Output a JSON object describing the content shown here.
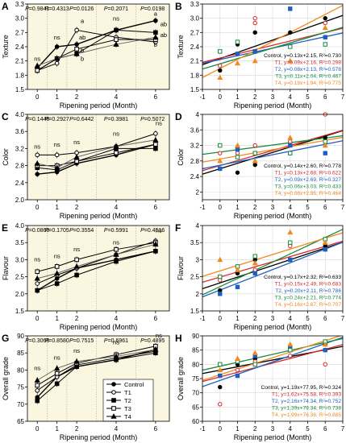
{
  "colors": {
    "control": "#000000",
    "T1": "#d62728",
    "T2": "#1f5fbf",
    "T3": "#178a3a",
    "T4": "#f08a1c",
    "panel_bg": "#fbf6df"
  },
  "left_xlabel": "Ripening period (Month)",
  "right_xlabel": "Ripening period (Month)",
  "legend_entries": [
    "Control",
    "T1",
    "T2",
    "T3",
    "T4"
  ],
  "chart_data": [
    {
      "id": "A",
      "type": "line",
      "ylabel": "Texture",
      "ylim": [
        1.5,
        3.3
      ],
      "yticks": [
        "1.5",
        "1.8",
        "2.1",
        "2.4",
        "2.7",
        "3.0",
        "3.3"
      ],
      "x": [
        0,
        1,
        2,
        4,
        6
      ],
      "xticks": [
        "0",
        "1",
        "2",
        "4",
        "6"
      ],
      "pvalues": [
        "P=0.9841",
        "P=0.4313",
        "P=0.0126",
        "P=0.2071",
        "P=0.0198"
      ],
      "sig": [
        {
          "t": "ns",
          "x": 0,
          "y": 2.1
        },
        {
          "t": "ns",
          "x": 1,
          "y": 2.55
        },
        {
          "t": "a",
          "x": 2,
          "y": 2.9
        },
        {
          "t": "ab",
          "x": 2,
          "y": 2.55
        },
        {
          "t": "b",
          "x": 2,
          "y": 2.28
        },
        {
          "t": "b",
          "x": 2,
          "y": 2.1
        },
        {
          "t": "ns",
          "x": 4,
          "y": 2.95
        },
        {
          "t": "a",
          "x": 6,
          "y": 3.05
        },
        {
          "t": "ab",
          "x": 6,
          "y": 2.83
        },
        {
          "t": "ab",
          "x": 6,
          "y": 2.6
        },
        {
          "t": "b",
          "x": 6,
          "y": 2.4
        }
      ],
      "series": [
        {
          "name": "Control",
          "values": [
            1.95,
            2.4,
            2.45,
            2.75,
            2.95
          ]
        },
        {
          "name": "T1",
          "values": [
            1.9,
            2.05,
            2.75,
            2.6,
            2.5
          ]
        },
        {
          "name": "T2",
          "values": [
            1.9,
            2.15,
            2.25,
            2.75,
            2.7
          ]
        },
        {
          "name": "T3",
          "values": [
            1.9,
            2.15,
            2.35,
            2.55,
            2.55
          ]
        },
        {
          "name": "T4",
          "values": [
            2.0,
            2.15,
            2.25,
            2.45,
            2.6
          ]
        }
      ]
    },
    {
      "id": "B",
      "type": "scatter",
      "ylabel": "Texture",
      "ylim": [
        1.5,
        3.3
      ],
      "yticks": [
        "1.5",
        "1.8",
        "2.1",
        "2.4",
        "2.7",
        "3.0",
        "3.3"
      ],
      "xlim": [
        -1,
        7
      ],
      "xticks": [
        "-1",
        "0",
        "1",
        "2",
        "3",
        "4",
        "5",
        "6",
        "7"
      ],
      "fits": [
        "Control, y=0.13x+2.15, R²=0.730",
        "T1, y=0.09x+2.16, R²=0.298",
        "T2, y=0.08x+2.13, R²=0.578",
        "T3, y=0.11x+2.04, R²=0.467",
        "T4, y=0.19x+1.94, R²=0.775"
      ],
      "lines": [
        [
          0.13,
          2.15
        ],
        [
          0.09,
          2.16
        ],
        [
          0.08,
          2.13
        ],
        [
          0.11,
          2.04
        ],
        [
          0.19,
          1.94
        ]
      ],
      "points": [
        [
          0,
          1.9,
          0
        ],
        [
          0,
          2.0,
          1
        ],
        [
          0,
          2.3,
          3
        ],
        [
          0,
          1.75,
          4
        ],
        [
          1,
          2.45,
          0
        ],
        [
          1,
          2.25,
          2
        ],
        [
          1,
          2.5,
          3
        ],
        [
          1,
          2.05,
          4
        ],
        [
          2,
          2.9,
          1
        ],
        [
          2,
          3.0,
          1
        ],
        [
          2,
          2.3,
          2
        ],
        [
          2,
          2.7,
          0
        ],
        [
          2,
          2.1,
          4
        ],
        [
          4,
          2.7,
          0
        ],
        [
          4,
          3.2,
          2
        ],
        [
          4,
          2.4,
          3
        ],
        [
          4,
          2.1,
          4
        ],
        [
          6,
          3.0,
          0
        ],
        [
          6,
          2.9,
          1
        ],
        [
          6,
          2.6,
          2
        ],
        [
          6,
          2.45,
          3
        ],
        [
          6,
          2.8,
          4
        ]
      ]
    },
    {
      "id": "C",
      "type": "line",
      "ylabel": "Color",
      "ylim": [
        2.0,
        4.0
      ],
      "yticks": [
        "2.0",
        "2.4",
        "2.8",
        "3.2",
        "3.6",
        "4.0"
      ],
      "x": [
        0,
        1,
        2,
        4,
        6
      ],
      "xticks": [
        "0",
        "1",
        "2",
        "4",
        "6"
      ],
      "pvalues": [
        "P=0.1446",
        "P=0.2927",
        "P=0.6442",
        "P=0.3981",
        "P=0.5072"
      ],
      "sig": [
        {
          "t": "ns",
          "x": 0,
          "y": 3.2
        },
        {
          "t": "ns",
          "x": 1,
          "y": 3.25
        },
        {
          "t": "ns",
          "x": 2,
          "y": 3.3
        },
        {
          "t": "ns",
          "x": 4,
          "y": 3.5
        },
        {
          "t": "ns",
          "x": 6,
          "y": 3.75
        }
      ],
      "series": [
        {
          "name": "Control",
          "values": [
            2.6,
            2.65,
            2.85,
            3.05,
            3.3
          ]
        },
        {
          "name": "T1",
          "values": [
            3.05,
            3.05,
            3.1,
            3.25,
            3.55
          ]
        },
        {
          "name": "T2",
          "values": [
            2.75,
            2.7,
            2.9,
            3.2,
            3.2
          ]
        },
        {
          "name": "T3",
          "values": [
            2.8,
            2.8,
            2.9,
            3.1,
            3.3
          ]
        },
        {
          "name": "T4",
          "values": [
            2.85,
            2.75,
            3.0,
            3.25,
            3.4
          ]
        }
      ]
    },
    {
      "id": "D",
      "type": "scatter",
      "ylabel": "Color",
      "ylim": [
        1.8,
        4.0
      ],
      "yticks": [
        "2",
        "2.4",
        "2.8",
        "3.2",
        "3.6",
        "4"
      ],
      "xlim": [
        -1,
        7
      ],
      "xticks": [
        "-1",
        "0",
        "1",
        "2",
        "3",
        "4",
        "5",
        "6",
        "7"
      ],
      "fits": [
        "Control, y=0.14x+2.60, R²=0.778",
        "T1, y=0.13x+2.68, R²=0.622",
        "T2, y=0.09x+2.69, R²=0.327",
        "T3, y=0.06x+3.03, R²=0.433",
        "T4, y=0.08x+2.85, R²=0.464"
      ],
      "lines": [
        [
          0.14,
          2.6
        ],
        [
          0.13,
          2.68
        ],
        [
          0.09,
          2.69
        ],
        [
          0.06,
          3.03
        ],
        [
          0.08,
          2.85
        ]
      ],
      "points": [
        [
          0,
          2.6,
          0
        ],
        [
          0,
          3.0,
          1
        ],
        [
          0,
          2.6,
          2
        ],
        [
          0,
          3.2,
          3
        ],
        [
          0,
          2.8,
          4
        ],
        [
          1,
          2.5,
          0
        ],
        [
          1,
          3.0,
          1
        ],
        [
          1,
          3.1,
          2
        ],
        [
          1,
          2.9,
          3
        ],
        [
          1,
          3.2,
          4
        ],
        [
          2,
          2.7,
          0
        ],
        [
          2,
          3.2,
          1
        ],
        [
          2,
          3.0,
          2
        ],
        [
          2,
          3.0,
          3
        ],
        [
          2,
          2.8,
          4
        ],
        [
          4,
          3.0,
          0
        ],
        [
          4,
          3.3,
          1
        ],
        [
          4,
          3.2,
          2
        ],
        [
          4,
          3.0,
          3
        ],
        [
          4,
          3.4,
          4
        ],
        [
          6,
          3.4,
          0
        ],
        [
          6,
          4.0,
          1
        ],
        [
          6,
          3.0,
          2
        ],
        [
          6,
          3.3,
          3
        ],
        [
          6,
          3.2,
          4
        ]
      ]
    },
    {
      "id": "E",
      "type": "line",
      "ylabel": "Flavour",
      "ylim": [
        1.5,
        4.0
      ],
      "yticks": [
        "1.5",
        "2.0",
        "2.5",
        "3.0",
        "3.5",
        "4.0"
      ],
      "x": [
        0,
        1,
        2,
        4,
        6
      ],
      "xticks": [
        "0",
        "1",
        "2",
        "4",
        "6"
      ],
      "pvalues": [
        "P=0.0860",
        "P=0.1705",
        "P=0.3554",
        "P=0.5991",
        "P=0.4516"
      ],
      "sig": [
        {
          "t": "ns",
          "x": 0,
          "y": 2.95
        },
        {
          "t": "ns",
          "x": 1,
          "y": 3.05
        },
        {
          "t": "ns",
          "x": 2,
          "y": 3.25
        },
        {
          "t": "ns",
          "x": 4,
          "y": 3.45
        },
        {
          "t": "ns",
          "x": 6,
          "y": 3.8
        }
      ],
      "series": [
        {
          "name": "Control",
          "values": [
            2.1,
            2.45,
            2.75,
            3.0,
            3.25
          ]
        },
        {
          "name": "T1",
          "values": [
            2.3,
            2.55,
            2.75,
            3.15,
            3.55
          ]
        },
        {
          "name": "T2",
          "values": [
            2.1,
            2.3,
            2.55,
            2.95,
            3.25
          ]
        },
        {
          "name": "T3",
          "values": [
            2.65,
            2.8,
            3.0,
            3.3,
            3.5
          ]
        },
        {
          "name": "T4",
          "values": [
            2.45,
            2.6,
            2.8,
            3.15,
            3.45
          ]
        }
      ]
    },
    {
      "id": "F",
      "type": "scatter",
      "ylabel": "Flavour",
      "ylim": [
        1.5,
        4.0
      ],
      "yticks": [
        "1.5",
        "2",
        "2.5",
        "3",
        "3.5",
        "4"
      ],
      "xlim": [
        -1,
        7
      ],
      "xticks": [
        "-1",
        "0",
        "1",
        "2",
        "3",
        "4",
        "5",
        "6",
        "7"
      ],
      "fits": [
        "Control, y=0.17x+2.32, R²=0.633",
        "T1, y=0.15x+2.49, R²=0.683",
        "T2, y=0.20x+2.11, R²=0.786",
        "T3, y=0.24x+2.21, R²=0.774",
        "T4, y=0.16x+2.67, R²=0.707"
      ],
      "lines": [
        [
          0.17,
          2.32
        ],
        [
          0.15,
          2.49
        ],
        [
          0.2,
          2.11
        ],
        [
          0.24,
          2.21
        ],
        [
          0.16,
          2.67
        ]
      ],
      "points": [
        [
          0,
          2.1,
          0
        ],
        [
          0,
          2.4,
          1
        ],
        [
          0,
          2.0,
          2
        ],
        [
          0,
          2.5,
          3
        ],
        [
          0,
          3.0,
          4
        ],
        [
          1,
          2.6,
          0
        ],
        [
          1,
          2.8,
          1
        ],
        [
          1,
          2.2,
          2
        ],
        [
          1,
          2.8,
          3
        ],
        [
          1,
          2.7,
          4
        ],
        [
          2,
          3.0,
          0
        ],
        [
          2,
          2.7,
          1
        ],
        [
          2,
          2.6,
          2
        ],
        [
          2,
          3.1,
          3
        ],
        [
          2,
          2.9,
          4
        ],
        [
          4,
          3.0,
          0
        ],
        [
          4,
          3.4,
          1
        ],
        [
          4,
          3.0,
          2
        ],
        [
          4,
          3.5,
          3
        ],
        [
          4,
          3.8,
          4
        ],
        [
          6,
          3.4,
          0
        ],
        [
          6,
          3.6,
          1
        ],
        [
          6,
          3.3,
          2
        ],
        [
          6,
          3.6,
          3
        ],
        [
          6,
          3.5,
          4
        ]
      ]
    },
    {
      "id": "G",
      "type": "line",
      "ylabel": "Overall grade",
      "ylim": [
        65,
        90
      ],
      "yticks": [
        "65",
        "70",
        "75",
        "80",
        "85",
        "90"
      ],
      "x": [
        0,
        1,
        2,
        4,
        6
      ],
      "xticks": [
        "0",
        "1",
        "2",
        "4",
        "6"
      ],
      "pvalues": [
        "P=0.3066",
        "P=0.8580",
        "P=0.7515",
        "P=0.6961",
        "P=0.4895"
      ],
      "sig": [
        {
          "t": "ns",
          "x": 0,
          "y": 80
        },
        {
          "t": "ns",
          "x": 1,
          "y": 83
        },
        {
          "t": "ns",
          "x": 2,
          "y": 85
        },
        {
          "t": "ns",
          "x": 4,
          "y": 87.5
        },
        {
          "t": "ns",
          "x": 6,
          "y": 89.5
        }
      ],
      "series": [
        {
          "name": "Control",
          "values": [
            72,
            78,
            81,
            83,
            86
          ]
        },
        {
          "name": "T1",
          "values": [
            74,
            78,
            81.5,
            83.5,
            85.5
          ]
        },
        {
          "name": "T2",
          "values": [
            71,
            76,
            81,
            83,
            85
          ]
        },
        {
          "name": "T3",
          "values": [
            75.5,
            79,
            82,
            84.5,
            87
          ]
        },
        {
          "name": "T4",
          "values": [
            77,
            80.5,
            82.5,
            84,
            86
          ]
        }
      ]
    },
    {
      "id": "H",
      "type": "scatter",
      "ylabel": "Overall grade",
      "ylim": [
        60,
        90
      ],
      "yticks": [
        "60",
        "65",
        "70",
        "75",
        "80",
        "85",
        "90"
      ],
      "xlim": [
        -1,
        7
      ],
      "xticks": [
        "-1",
        "0",
        "1",
        "2",
        "3",
        "4",
        "5",
        "6",
        "7"
      ],
      "fits": [
        "Control, y=1.19x+77.95, R²=0.324",
        "T1, y=1.62x+75.58, R²=0.393",
        "T2, y=2.16x+74.34, R²=0.752",
        "T3, y=1.39x+79.34, R²=0.738",
        "T4, y=1.99x+76.36, R²=0.885"
      ],
      "lines": [
        [
          1.19,
          77.95
        ],
        [
          1.62,
          75.58
        ],
        [
          2.16,
          74.34
        ],
        [
          1.39,
          79.34
        ],
        [
          1.99,
          76.36
        ]
      ],
      "points": [
        [
          0,
          72,
          0
        ],
        [
          0,
          66,
          1
        ],
        [
          0,
          76,
          2
        ],
        [
          0,
          80,
          3
        ],
        [
          0,
          78,
          4
        ],
        [
          1,
          80,
          0
        ],
        [
          1,
          78,
          1
        ],
        [
          1,
          76,
          2
        ],
        [
          1,
          81,
          3
        ],
        [
          1,
          82,
          4
        ],
        [
          2,
          82,
          0
        ],
        [
          2,
          81,
          1
        ],
        [
          2,
          83,
          2
        ],
        [
          2,
          80,
          3
        ],
        [
          2,
          84,
          4
        ],
        [
          4,
          85,
          0
        ],
        [
          4,
          83,
          1
        ],
        [
          4,
          86,
          2
        ],
        [
          4,
          85,
          3
        ],
        [
          4,
          87,
          4
        ],
        [
          6,
          87,
          0
        ],
        [
          6,
          80,
          1
        ],
        [
          6,
          85,
          2
        ],
        [
          6,
          88,
          3
        ],
        [
          6,
          87,
          4
        ]
      ]
    }
  ]
}
